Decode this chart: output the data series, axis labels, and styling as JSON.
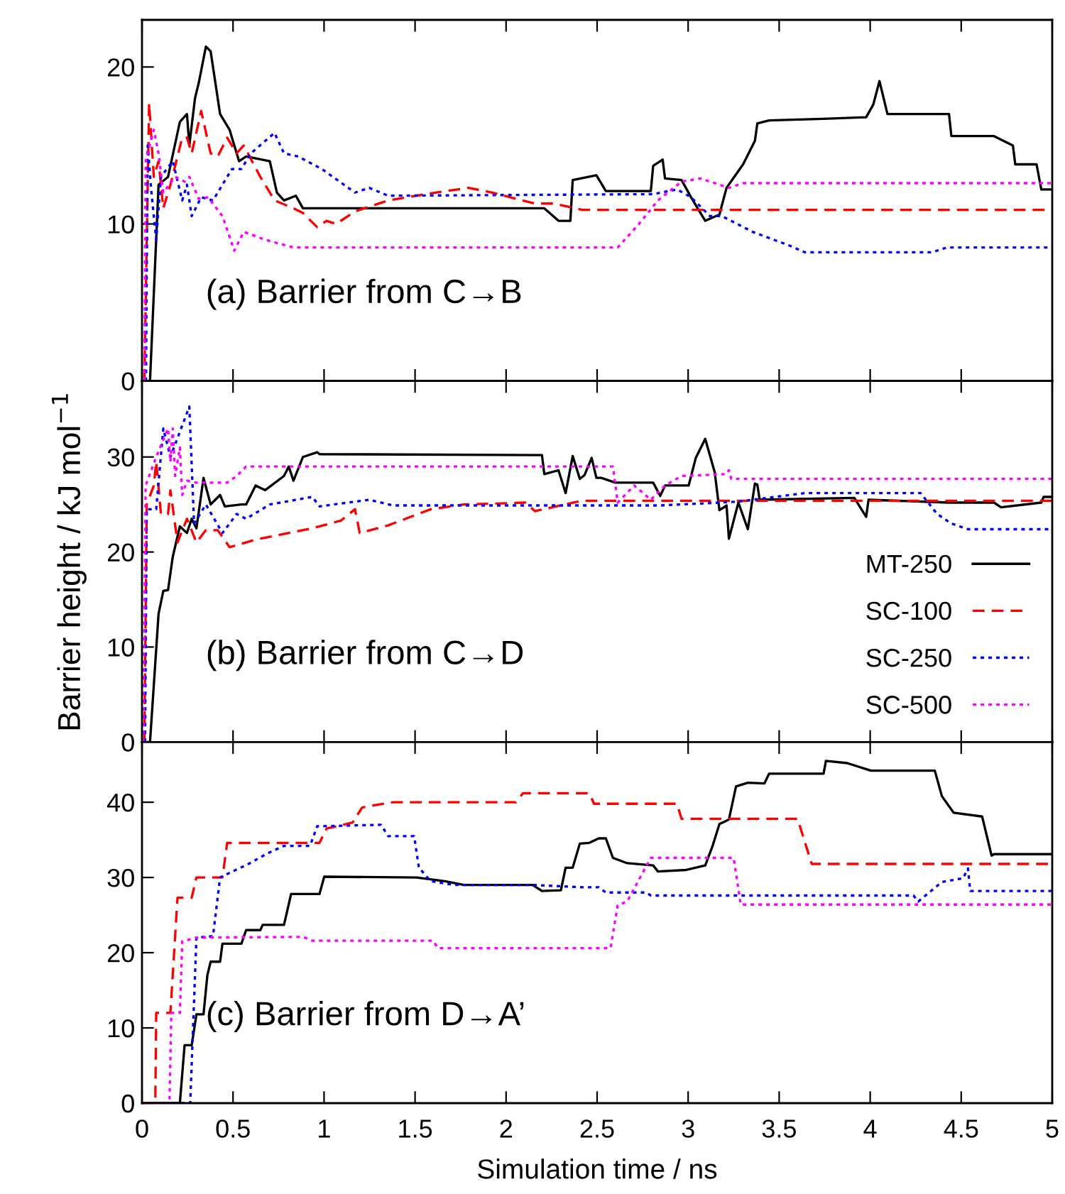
{
  "chart_data": [
    {
      "type": "line",
      "annotations": [
        "(a) Barrier from C→B"
      ],
      "xlim": [
        0,
        5
      ],
      "ylim": [
        0,
        23
      ],
      "xticks": [
        0,
        0.5,
        1,
        1.5,
        2,
        2.5,
        3,
        3.5,
        4,
        4.5,
        5
      ],
      "yticks": [
        0,
        10,
        20
      ],
      "tick_labels": "y",
      "series": [
        {
          "color": "#000000",
          "line_style": "solid",
          "x": [
            0,
            0.044,
            0.091,
            0.143,
            0.208,
            0.247,
            0.26,
            0.291,
            0.312,
            0.351,
            0.377,
            0.429,
            0.481,
            0.533,
            0.572,
            0.702,
            0.741,
            0.78,
            0.845,
            0.884,
            0.975,
            2.21,
            2.288,
            2.353,
            2.366,
            2.496,
            2.548,
            2.795,
            2.808,
            2.86,
            2.873,
            2.964,
            3.016,
            3.094,
            3.172,
            3.211,
            3.302,
            3.367,
            3.38,
            3.445,
            3.744,
            3.978,
            4.017,
            4.051,
            4.095,
            4.433,
            4.446,
            4.68,
            4.784,
            4.797,
            4.914,
            4.94,
            5.0
          ],
          "values": [
            0,
            0,
            12.5,
            13,
            16.5,
            17,
            15,
            18,
            19,
            21.3,
            21,
            17,
            16,
            14,
            14.3,
            14,
            12,
            11.5,
            11.8,
            11,
            11,
            11,
            10.2,
            10.2,
            12.8,
            13.1,
            12.1,
            12.1,
            13.7,
            14.1,
            12.9,
            12.8,
            11.7,
            10.2,
            10.6,
            12.3,
            13.8,
            15.3,
            16.4,
            16.6,
            16.7,
            16.8,
            17.6,
            19.1,
            17.0,
            17.0,
            15.6,
            15.6,
            15.0,
            13.8,
            13.8,
            12.2,
            12.2
          ]
        },
        {
          "color": "#ff0000",
          "line_style": "dashed",
          "x": [
            0.013,
            0.039,
            0.065,
            0.091,
            0.117,
            0.156,
            0.221,
            0.247,
            0.273,
            0.325,
            0.377,
            0.416,
            0.468,
            0.52,
            0.559,
            0.65,
            0.728,
            0.832,
            0.884,
            0.962,
            1.014,
            1.066,
            1.17,
            1.352,
            1.612,
            1.794,
            1.924,
            2.158,
            2.262,
            2.418,
            5.0
          ],
          "values": [
            0,
            17.7,
            13,
            14,
            11,
            12.5,
            15.5,
            15.5,
            14.5,
            17.2,
            14.5,
            14.3,
            15.5,
            14.5,
            15,
            13,
            11.5,
            11,
            10.7,
            9.8,
            10.2,
            10,
            10.8,
            11.5,
            12,
            12.3,
            12,
            11.3,
            11.3,
            10.9,
            10.9
          ]
        },
        {
          "color": "#0000ff",
          "line_style": "dotted",
          "x": [
            0.022,
            0.031,
            0.052,
            0.078,
            0.104,
            0.169,
            0.221,
            0.247,
            0.273,
            0.325,
            0.39,
            0.442,
            0.494,
            0.546,
            0.598,
            0.728,
            0.78,
            0.858,
            0.988,
            1.17,
            1.248,
            1.352,
            2.808,
            2.94,
            3.016,
            3.12,
            3.185,
            3.354,
            3.562,
            3.64,
            4.342,
            4.42,
            5.0
          ],
          "values": [
            0,
            15,
            12,
            9,
            13,
            14,
            11.5,
            12.5,
            10.5,
            11.7,
            11.5,
            12.5,
            13.5,
            13.5,
            14.5,
            15.8,
            14.5,
            14.3,
            13.5,
            12,
            12.3,
            11.8,
            11.9,
            12.2,
            11.7,
            10.5,
            10.5,
            9.5,
            8.6,
            8.2,
            8.2,
            8.5,
            8.5
          ]
        },
        {
          "color": "#ff00ff",
          "line_style": "dotted",
          "x": [
            0.013,
            0.02,
            0.065,
            0.091,
            0.117,
            0.182,
            0.234,
            0.26,
            0.312,
            0.364,
            0.442,
            0.507,
            0.559,
            0.676,
            0.832,
            2.613,
            2.73,
            2.834,
            2.964,
            3.068,
            3.224,
            3.302,
            5.0
          ],
          "values": [
            0,
            14,
            16,
            14.5,
            12,
            13,
            12.7,
            13,
            11.6,
            11.7,
            10.5,
            8.3,
            9.5,
            9,
            8.5,
            8.5,
            10,
            11.5,
            12.7,
            12.9,
            12.3,
            12.6,
            12.6
          ]
        }
      ]
    },
    {
      "type": "line",
      "annotations": [
        "(b) Barrier from C→D"
      ],
      "ylabel": "Barrier height / kJ mol$^{−1}$",
      "legend": "bottom right",
      "xlim": [
        0,
        5
      ],
      "ylim": [
        0,
        38
      ],
      "xticks": [
        0,
        0.5,
        1,
        1.5,
        2,
        2.5,
        3,
        3.5,
        4,
        4.5,
        5
      ],
      "yticks": [
        0,
        10,
        20,
        30
      ],
      "tick_labels": "y",
      "series": [
        {
          "name": "MT-250",
          "color": "#000000",
          "line_style": "solid",
          "x": [
            0,
            0.044,
            0.091,
            0.117,
            0.143,
            0.169,
            0.208,
            0.247,
            0.273,
            0.299,
            0.325,
            0.338,
            0.377,
            0.403,
            0.429,
            0.455,
            0.546,
            0.572,
            0.624,
            0.676,
            0.78,
            0.806,
            0.832,
            0.884,
            0.962,
            0.975,
            2.197,
            2.21,
            2.288,
            2.327,
            2.366,
            2.405,
            2.431,
            2.47,
            2.496,
            2.522,
            2.6,
            2.665,
            2.808,
            2.847,
            2.873,
            3.003,
            3.042,
            3.094,
            3.146,
            3.172,
            3.211,
            3.224,
            3.276,
            3.328,
            3.367,
            3.38,
            3.393,
            3.913,
            3.978,
            3.991,
            4.433,
            4.68,
            4.719,
            4.94,
            4.953,
            5.0
          ],
          "values": [
            0,
            0,
            13.5,
            15.9,
            16,
            19.5,
            22.7,
            22,
            23.5,
            22.5,
            26,
            27.8,
            25,
            25.5,
            26,
            24.8,
            25,
            25,
            27,
            26.5,
            28,
            29,
            27.5,
            30,
            30.5,
            30.3,
            30.2,
            28.2,
            28.6,
            26.2,
            30.1,
            27.7,
            28.1,
            29.9,
            27.8,
            27.8,
            27.3,
            27.3,
            27.3,
            25.9,
            27.0,
            27.0,
            29.9,
            31.9,
            28.4,
            24.4,
            24.9,
            21.4,
            25.2,
            22.4,
            27.2,
            27.1,
            25.5,
            25.7,
            23.7,
            25.5,
            25.2,
            25.2,
            24.7,
            25.2,
            25.8,
            25.8
          ]
        },
        {
          "name": "SC-100",
          "color": "#ff0000",
          "line_style": "dashed",
          "x": [
            0.013,
            0.026,
            0.065,
            0.078,
            0.104,
            0.143,
            0.156,
            0.195,
            0.247,
            0.299,
            0.351,
            0.416,
            0.481,
            0.624,
            0.936,
            1.092,
            1.17,
            1.196,
            1.352,
            1.586,
            1.768,
            2.106,
            2.158,
            2.418,
            5.0
          ],
          "values": [
            0,
            25,
            27,
            29.5,
            24,
            24,
            26.5,
            21,
            23.5,
            21,
            22.3,
            22.3,
            20.5,
            21.3,
            22.5,
            23.3,
            24.5,
            22,
            22.8,
            24.5,
            25,
            25.2,
            24.3,
            25.4,
            25.4
          ]
        },
        {
          "name": "SC-250",
          "color": "#0000ff",
          "line_style": "dotted",
          "x": [
            0.017,
            0.026,
            0.078,
            0.117,
            0.156,
            0.26,
            0.286,
            0.351,
            0.442,
            0.52,
            0.572,
            0.702,
            0.936,
            0.975,
            1.248,
            1.378,
            2.847,
            3.276,
            3.64,
            4.277,
            4.368,
            4.446,
            4.537,
            5.0
          ],
          "values": [
            0,
            24.5,
            24.5,
            33,
            30,
            35.3,
            23,
            25,
            22,
            24,
            23.5,
            25,
            25.8,
            24.8,
            25.5,
            24.9,
            24.9,
            25.3,
            26.2,
            26.2,
            24.0,
            23.0,
            22.4,
            22.4
          ]
        },
        {
          "name": "SC-500",
          "color": "#ff00ff",
          "line_style": "dotted",
          "x": [
            0.007,
            0.02,
            0.078,
            0.143,
            0.156,
            0.169,
            0.182,
            0.208,
            0.221,
            0.247,
            0.299,
            0.468,
            0.52,
            0.572,
            2.587,
            2.613,
            2.704,
            2.795,
            2.873,
            2.964,
            3.211,
            3.224,
            3.237,
            5.0
          ],
          "values": [
            0,
            27,
            30,
            33,
            29.5,
            33,
            28,
            31,
            26,
            27.5,
            27.3,
            27.3,
            28,
            29,
            29,
            25.2,
            27,
            25.5,
            27,
            28,
            28.2,
            28.6,
            27.7,
            27.7
          ]
        }
      ]
    },
    {
      "type": "line",
      "annotations": [
        "(c) Barrier from D→A’"
      ],
      "xlabel": "Simulation time / ns",
      "xlim": [
        0,
        5
      ],
      "ylim": [
        0,
        48
      ],
      "xticks": [
        0,
        0.5,
        1,
        1.5,
        2,
        2.5,
        3,
        3.5,
        4,
        4.5,
        5
      ],
      "yticks": [
        0,
        10,
        20,
        30,
        40
      ],
      "series": [
        {
          "color": "#000000",
          "line_style": "solid",
          "x": [
            0,
            0.208,
            0.234,
            0.273,
            0.299,
            0.338,
            0.359,
            0.377,
            0.429,
            0.442,
            0.546,
            0.572,
            0.65,
            0.663,
            0.78,
            0.819,
            0.975,
            1.001,
            1.508,
            1.664,
            1.768,
            2.145,
            2.197,
            2.301,
            2.327,
            2.366,
            2.405,
            2.457,
            2.509,
            2.548,
            2.587,
            2.665,
            2.808,
            2.834,
            2.99,
            3.094,
            3.133,
            3.172,
            3.224,
            3.263,
            3.328,
            3.419,
            3.445,
            3.744,
            3.757,
            3.874,
            4.004,
            4.355,
            4.394,
            4.459,
            4.615,
            4.667,
            4.68,
            5.0
          ],
          "values": [
            0,
            0,
            7.7,
            7.7,
            11.8,
            11.8,
            17,
            18.8,
            18.8,
            21.2,
            21.2,
            23,
            23,
            23.7,
            23.7,
            27.8,
            27.8,
            30.1,
            30,
            29.5,
            29,
            29,
            28.2,
            28.3,
            31.3,
            31.3,
            34.5,
            34.6,
            35.2,
            35.2,
            32.6,
            31.9,
            31.6,
            30.8,
            31,
            31.6,
            34.1,
            37.1,
            37.7,
            42.1,
            42.6,
            42.5,
            43.8,
            43.8,
            45.5,
            45.2,
            44.2,
            44.2,
            40.8,
            38.6,
            38.1,
            32.9,
            33.1,
            33.1
          ]
        },
        {
          "color": "#ff0000",
          "line_style": "dashed",
          "x": [
            0,
            0.073,
            0.078,
            0.156,
            0.195,
            0.273,
            0.299,
            0.442,
            0.468,
            0.975,
            1.014,
            1.157,
            1.209,
            1.3,
            1.378,
            2.054,
            2.093,
            2.457,
            2.483,
            2.938,
            2.964,
            3.601,
            3.679,
            5.0
          ],
          "values": [
            0,
            0,
            12,
            12,
            27.3,
            27.3,
            30,
            30,
            34.6,
            34.6,
            36.5,
            37.3,
            39.3,
            39.7,
            40,
            40,
            41.2,
            41.2,
            39.8,
            39.8,
            37.8,
            37.8,
            31.8,
            31.8
          ]
        },
        {
          "color": "#0000ff",
          "line_style": "dotted",
          "x": [
            0,
            0.265,
            0.299,
            0.39,
            0.429,
            0.585,
            0.689,
            0.78,
            0.923,
            0.962,
            1.313,
            1.352,
            1.495,
            1.521,
            1.586,
            1.716,
            2.145,
            2.418,
            2.509,
            2.548,
            2.769,
            2.795,
            4.238,
            4.264,
            4.394,
            4.511,
            4.537,
            4.55,
            5.0
          ],
          "values": [
            0,
            0,
            22,
            22.2,
            30,
            31.8,
            33.2,
            34.2,
            34.2,
            36.8,
            37,
            35.5,
            35.5,
            31.3,
            29.5,
            29,
            29,
            28.7,
            28.7,
            28.0,
            28.0,
            27.6,
            27.6,
            26.8,
            29.4,
            29.9,
            31.2,
            28.2,
            28.2
          ]
        },
        {
          "color": "#ff00ff",
          "line_style": "dotted",
          "x": [
            0,
            0.151,
            0.161,
            0.208,
            0.221,
            0.299,
            0.884,
            0.936,
            1.599,
            1.625,
            2.574,
            2.613,
            2.665,
            2.795,
            3.25,
            3.289,
            5.0
          ],
          "values": [
            0,
            0,
            12,
            12,
            21.5,
            22,
            22.1,
            21.6,
            21.6,
            20.6,
            20.6,
            26.3,
            26.8,
            32.6,
            32.6,
            26.4,
            26.4
          ]
        }
      ]
    }
  ]
}
